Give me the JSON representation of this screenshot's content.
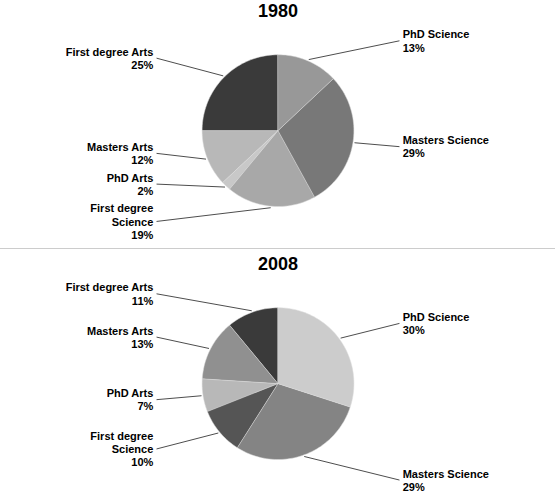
{
  "chart_data": [
    {
      "type": "pie",
      "title": "1980",
      "categories": [
        "First degree Arts",
        "Masters Arts",
        "PhD Arts",
        "First degree\nScience",
        "Masters Science",
        "PhD Science"
      ],
      "values": [
        25,
        12,
        2,
        19,
        29,
        13
      ],
      "value_labels": [
        "25%",
        "12%",
        "2%",
        "19%",
        "29%",
        "13%"
      ],
      "data_labels": true,
      "colors": [
        "#3a3a3a",
        "#b8b8b8",
        "#c8c8c8",
        "#a8a8a8",
        "#787878",
        "#989898"
      ]
    },
    {
      "type": "pie",
      "title": "2008",
      "categories": [
        "First degree Arts",
        "Masters Arts",
        "PhD Arts",
        "First degree\nScience",
        "Masters Science",
        "PhD Science"
      ],
      "values": [
        11,
        13,
        7,
        10,
        29,
        30
      ],
      "value_labels": [
        "11%",
        "13%",
        "7%",
        "10%",
        "29%",
        "30%"
      ],
      "data_labels": true,
      "colors": [
        "#3a3a3a",
        "#909090",
        "#b8b8b8",
        "#555555",
        "#848484",
        "#cccccc"
      ]
    }
  ]
}
